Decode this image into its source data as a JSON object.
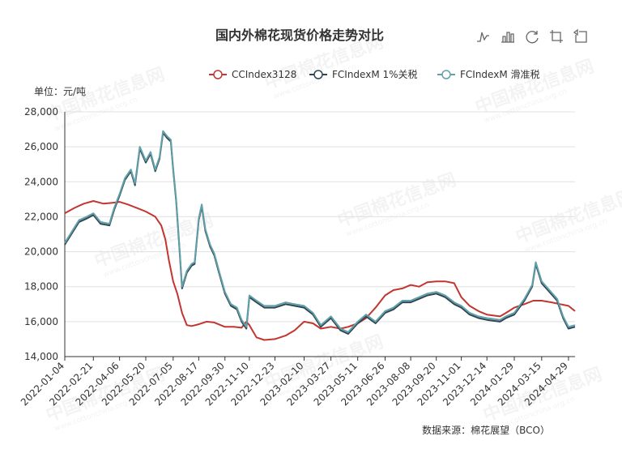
{
  "chart_data": {
    "type": "line",
    "title": "国内外棉花现货价格走势对比",
    "unit": "单位：元/吨",
    "source": "数据来源：棉花展望（BCO）",
    "watermark": "中国棉花信息网",
    "watermark_sub": "www.cottonchina.org.cn",
    "ylim": [
      14000,
      28000
    ],
    "yticks": [
      14000,
      16000,
      18000,
      20000,
      22000,
      24000,
      26000,
      28000
    ],
    "ytick_labels": [
      "14,000",
      "16,000",
      "18,000",
      "20,000",
      "22,000",
      "24,000",
      "26,000",
      "28,000"
    ],
    "xlim": [
      "2022-01-04",
      "2024-05-10"
    ],
    "xtick_labels": [
      "2022-01-04",
      "2022-02-21",
      "2022-04-06",
      "2022-05-20",
      "2022-07-05",
      "2022-08-17",
      "2022-09-30",
      "2022-11-10",
      "2022-12-23",
      "2023-02-10",
      "2023-03-27",
      "2023-05-11",
      "2023-06-26",
      "2023-08-08",
      "2023-09-20",
      "2023-11-01",
      "2023-12-14",
      "2024-01-29",
      "2024-03-15",
      "2024-04-29"
    ],
    "grid": true,
    "legend_position": "top-right",
    "series": [
      {
        "name": "CCIndex3128",
        "color": "#c23531",
        "points": [
          [
            "2022-01-04",
            22200
          ],
          [
            "2022-01-20",
            22500
          ],
          [
            "2022-02-05",
            22750
          ],
          [
            "2022-02-21",
            22900
          ],
          [
            "2022-03-10",
            22750
          ],
          [
            "2022-03-25",
            22800
          ],
          [
            "2022-04-06",
            22850
          ],
          [
            "2022-04-20",
            22700
          ],
          [
            "2022-05-05",
            22500
          ],
          [
            "2022-05-20",
            22300
          ],
          [
            "2022-06-05",
            22000
          ],
          [
            "2022-06-15",
            21500
          ],
          [
            "2022-06-22",
            20700
          ],
          [
            "2022-06-28",
            19500
          ],
          [
            "2022-07-05",
            18300
          ],
          [
            "2022-07-12",
            17600
          ],
          [
            "2022-07-20",
            16500
          ],
          [
            "2022-07-28",
            15800
          ],
          [
            "2022-08-05",
            15750
          ],
          [
            "2022-08-17",
            15850
          ],
          [
            "2022-08-30",
            16000
          ],
          [
            "2022-09-12",
            15950
          ],
          [
            "2022-09-30",
            15700
          ],
          [
            "2022-10-15",
            15700
          ],
          [
            "2022-10-28",
            15650
          ],
          [
            "2022-11-05",
            16000
          ],
          [
            "2022-11-10",
            15800
          ],
          [
            "2022-11-22",
            15100
          ],
          [
            "2022-12-05",
            14950
          ],
          [
            "2022-12-23",
            15000
          ],
          [
            "2023-01-10",
            15200
          ],
          [
            "2023-01-25",
            15500
          ],
          [
            "2023-02-10",
            16000
          ],
          [
            "2023-02-25",
            15900
          ],
          [
            "2023-03-10",
            15600
          ],
          [
            "2023-03-27",
            15700
          ],
          [
            "2023-04-12",
            15600
          ],
          [
            "2023-04-25",
            15700
          ],
          [
            "2023-05-11",
            15900
          ],
          [
            "2023-05-25",
            16200
          ],
          [
            "2023-06-10",
            16800
          ],
          [
            "2023-06-26",
            17500
          ],
          [
            "2023-07-10",
            17800
          ],
          [
            "2023-07-25",
            17900
          ],
          [
            "2023-08-08",
            18100
          ],
          [
            "2023-08-22",
            18000
          ],
          [
            "2023-09-05",
            18250
          ],
          [
            "2023-09-20",
            18300
          ],
          [
            "2023-10-05",
            18300
          ],
          [
            "2023-10-20",
            18200
          ],
          [
            "2023-11-01",
            17400
          ],
          [
            "2023-11-15",
            16900
          ],
          [
            "2023-11-30",
            16600
          ],
          [
            "2023-12-14",
            16400
          ],
          [
            "2024-01-05",
            16300
          ],
          [
            "2024-01-15",
            16500
          ],
          [
            "2024-01-29",
            16800
          ],
          [
            "2024-02-15",
            17000
          ],
          [
            "2024-03-01",
            17200
          ],
          [
            "2024-03-15",
            17200
          ],
          [
            "2024-04-01",
            17100
          ],
          [
            "2024-04-15",
            17000
          ],
          [
            "2024-04-29",
            16900
          ],
          [
            "2024-05-10",
            16600
          ]
        ]
      },
      {
        "name": "FCIndexM 1%关税",
        "color": "#2f4554",
        "points": [
          [
            "2022-01-04",
            20400
          ],
          [
            "2022-01-15",
            21000
          ],
          [
            "2022-01-28",
            21700
          ],
          [
            "2022-02-10",
            21900
          ],
          [
            "2022-02-21",
            22100
          ],
          [
            "2022-03-05",
            21600
          ],
          [
            "2022-03-20",
            21500
          ],
          [
            "2022-03-28",
            22400
          ],
          [
            "2022-04-06",
            23200
          ],
          [
            "2022-04-15",
            24100
          ],
          [
            "2022-04-25",
            24600
          ],
          [
            "2022-05-02",
            23800
          ],
          [
            "2022-05-10",
            25900
          ],
          [
            "2022-05-20",
            25100
          ],
          [
            "2022-05-28",
            25600
          ],
          [
            "2022-06-05",
            24600
          ],
          [
            "2022-06-12",
            25300
          ],
          [
            "2022-06-18",
            26800
          ],
          [
            "2022-06-25",
            26500
          ],
          [
            "2022-07-01",
            26300
          ],
          [
            "2022-07-05",
            24700
          ],
          [
            "2022-07-10",
            22900
          ],
          [
            "2022-07-15",
            20500
          ],
          [
            "2022-07-20",
            17900
          ],
          [
            "2022-07-28",
            18800
          ],
          [
            "2022-08-05",
            19200
          ],
          [
            "2022-08-10",
            19300
          ],
          [
            "2022-08-17",
            21800
          ],
          [
            "2022-08-22",
            22600
          ],
          [
            "2022-08-28",
            21200
          ],
          [
            "2022-09-05",
            20300
          ],
          [
            "2022-09-12",
            19800
          ],
          [
            "2022-09-20",
            18800
          ],
          [
            "2022-09-30",
            17600
          ],
          [
            "2022-10-10",
            16900
          ],
          [
            "2022-10-20",
            16700
          ],
          [
            "2022-10-28",
            16000
          ],
          [
            "2022-11-05",
            15600
          ],
          [
            "2022-11-10",
            17400
          ],
          [
            "2022-11-22",
            17100
          ],
          [
            "2022-12-05",
            16800
          ],
          [
            "2022-12-23",
            16800
          ],
          [
            "2023-01-10",
            17000
          ],
          [
            "2023-01-25",
            16900
          ],
          [
            "2023-02-10",
            16800
          ],
          [
            "2023-02-25",
            16400
          ],
          [
            "2023-03-10",
            15700
          ],
          [
            "2023-03-27",
            16200
          ],
          [
            "2023-04-12",
            15500
          ],
          [
            "2023-04-25",
            15300
          ],
          [
            "2023-05-11",
            15900
          ],
          [
            "2023-05-25",
            16300
          ],
          [
            "2023-06-10",
            15900
          ],
          [
            "2023-06-26",
            16500
          ],
          [
            "2023-07-10",
            16700
          ],
          [
            "2023-07-25",
            17100
          ],
          [
            "2023-08-08",
            17100
          ],
          [
            "2023-08-22",
            17300
          ],
          [
            "2023-09-05",
            17500
          ],
          [
            "2023-09-20",
            17600
          ],
          [
            "2023-10-05",
            17400
          ],
          [
            "2023-10-20",
            17000
          ],
          [
            "2023-11-01",
            16800
          ],
          [
            "2023-11-15",
            16400
          ],
          [
            "2023-11-30",
            16200
          ],
          [
            "2023-12-14",
            16100
          ],
          [
            "2024-01-05",
            16000
          ],
          [
            "2024-01-15",
            16200
          ],
          [
            "2024-01-29",
            16400
          ],
          [
            "2024-02-15",
            17200
          ],
          [
            "2024-02-28",
            18000
          ],
          [
            "2024-03-05",
            19300
          ],
          [
            "2024-03-15",
            18200
          ],
          [
            "2024-03-28",
            17700
          ],
          [
            "2024-04-10",
            17200
          ],
          [
            "2024-04-20",
            16200
          ],
          [
            "2024-04-29",
            15600
          ],
          [
            "2024-05-10",
            15700
          ]
        ]
      },
      {
        "name": "FCIndexM 滑准税",
        "color": "#61a0a8",
        "points": [
          [
            "2022-01-04",
            20500
          ],
          [
            "2022-01-15",
            21100
          ],
          [
            "2022-01-28",
            21800
          ],
          [
            "2022-02-10",
            22000
          ],
          [
            "2022-02-21",
            22200
          ],
          [
            "2022-03-05",
            21700
          ],
          [
            "2022-03-20",
            21600
          ],
          [
            "2022-03-28",
            22500
          ],
          [
            "2022-04-06",
            23300
          ],
          [
            "2022-04-15",
            24200
          ],
          [
            "2022-04-25",
            24700
          ],
          [
            "2022-05-02",
            23900
          ],
          [
            "2022-05-10",
            26000
          ],
          [
            "2022-05-20",
            25200
          ],
          [
            "2022-05-28",
            25700
          ],
          [
            "2022-06-05",
            24700
          ],
          [
            "2022-06-12",
            25400
          ],
          [
            "2022-06-18",
            26900
          ],
          [
            "2022-06-25",
            26600
          ],
          [
            "2022-07-01",
            26400
          ],
          [
            "2022-07-05",
            24800
          ],
          [
            "2022-07-10",
            23000
          ],
          [
            "2022-07-15",
            20600
          ],
          [
            "2022-07-20",
            18000
          ],
          [
            "2022-07-28",
            18900
          ],
          [
            "2022-08-05",
            19300
          ],
          [
            "2022-08-10",
            19400
          ],
          [
            "2022-08-17",
            21900
          ],
          [
            "2022-08-22",
            22700
          ],
          [
            "2022-08-28",
            21300
          ],
          [
            "2022-09-05",
            20400
          ],
          [
            "2022-09-12",
            19900
          ],
          [
            "2022-09-20",
            18900
          ],
          [
            "2022-09-30",
            17700
          ],
          [
            "2022-10-10",
            17000
          ],
          [
            "2022-10-20",
            16800
          ],
          [
            "2022-10-28",
            16100
          ],
          [
            "2022-11-05",
            15700
          ],
          [
            "2022-11-10",
            17500
          ],
          [
            "2022-11-22",
            17200
          ],
          [
            "2022-12-05",
            16900
          ],
          [
            "2022-12-23",
            16900
          ],
          [
            "2023-01-10",
            17100
          ],
          [
            "2023-01-25",
            17000
          ],
          [
            "2023-02-10",
            16900
          ],
          [
            "2023-02-25",
            16500
          ],
          [
            "2023-03-10",
            15800
          ],
          [
            "2023-03-27",
            16300
          ],
          [
            "2023-04-12",
            15600
          ],
          [
            "2023-04-25",
            15400
          ],
          [
            "2023-05-11",
            16000
          ],
          [
            "2023-05-25",
            16400
          ],
          [
            "2023-06-10",
            16000
          ],
          [
            "2023-06-26",
            16600
          ],
          [
            "2023-07-10",
            16800
          ],
          [
            "2023-07-25",
            17200
          ],
          [
            "2023-08-08",
            17200
          ],
          [
            "2023-08-22",
            17400
          ],
          [
            "2023-09-05",
            17600
          ],
          [
            "2023-09-20",
            17700
          ],
          [
            "2023-10-05",
            17500
          ],
          [
            "2023-10-20",
            17100
          ],
          [
            "2023-11-01",
            16900
          ],
          [
            "2023-11-15",
            16500
          ],
          [
            "2023-11-30",
            16300
          ],
          [
            "2023-12-14",
            16200
          ],
          [
            "2024-01-05",
            16100
          ],
          [
            "2024-01-15",
            16300
          ],
          [
            "2024-01-29",
            16500
          ],
          [
            "2024-02-15",
            17300
          ],
          [
            "2024-02-28",
            18100
          ],
          [
            "2024-03-05",
            19400
          ],
          [
            "2024-03-15",
            18300
          ],
          [
            "2024-03-28",
            17800
          ],
          [
            "2024-04-10",
            17300
          ],
          [
            "2024-04-20",
            16300
          ],
          [
            "2024-04-29",
            15700
          ],
          [
            "2024-05-10",
            15800
          ]
        ]
      }
    ]
  },
  "toolbox": {
    "items": [
      {
        "name": "line-view-icon"
      },
      {
        "name": "bar-view-icon"
      },
      {
        "name": "restore-icon"
      },
      {
        "name": "data-zoom-icon"
      },
      {
        "name": "zoom-reset-icon"
      }
    ]
  }
}
